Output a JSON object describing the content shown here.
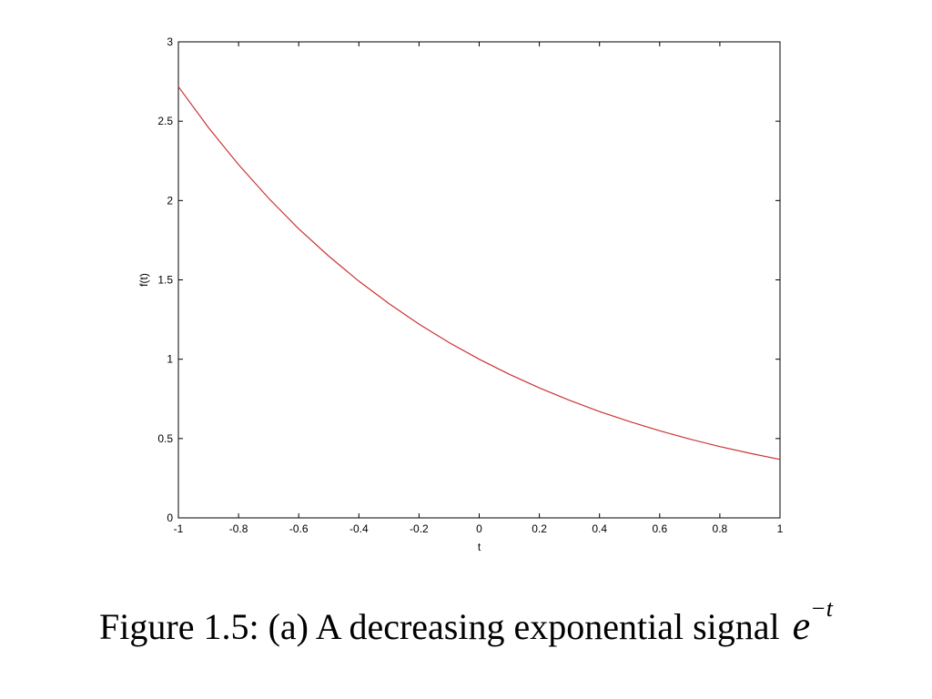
{
  "chart_data": {
    "type": "line",
    "xlabel": "t",
    "ylabel": "f(t)",
    "xlim": [
      -1,
      1
    ],
    "ylim": [
      0,
      3
    ],
    "xticks": [
      "-1",
      "-0.8",
      "-0.6",
      "-0.4",
      "-0.2",
      "0",
      "0.2",
      "0.4",
      "0.6",
      "0.8",
      "1"
    ],
    "yticks": [
      "0",
      "0.5",
      "1",
      "1.5",
      "2",
      "2.5",
      "3"
    ],
    "grid": false,
    "series": [
      {
        "color": "#cc3333",
        "x": [
          -1,
          -0.9,
          -0.8,
          -0.7,
          -0.6,
          -0.5,
          -0.4,
          -0.3,
          -0.2,
          -0.1,
          0,
          0.1,
          0.2,
          0.3,
          0.4,
          0.5,
          0.6,
          0.7,
          0.8,
          0.9,
          1
        ],
        "y": [
          2.718,
          2.46,
          2.226,
          2.014,
          1.822,
          1.649,
          1.492,
          1.35,
          1.221,
          1.105,
          1,
          0.905,
          0.819,
          0.741,
          0.67,
          0.607,
          0.549,
          0.497,
          0.449,
          0.407,
          0.368
        ]
      }
    ]
  },
  "caption": {
    "text": "Figure 1.5: (a) A decreasing exponential signal",
    "math_base": "e",
    "math_exponent": "−t"
  }
}
